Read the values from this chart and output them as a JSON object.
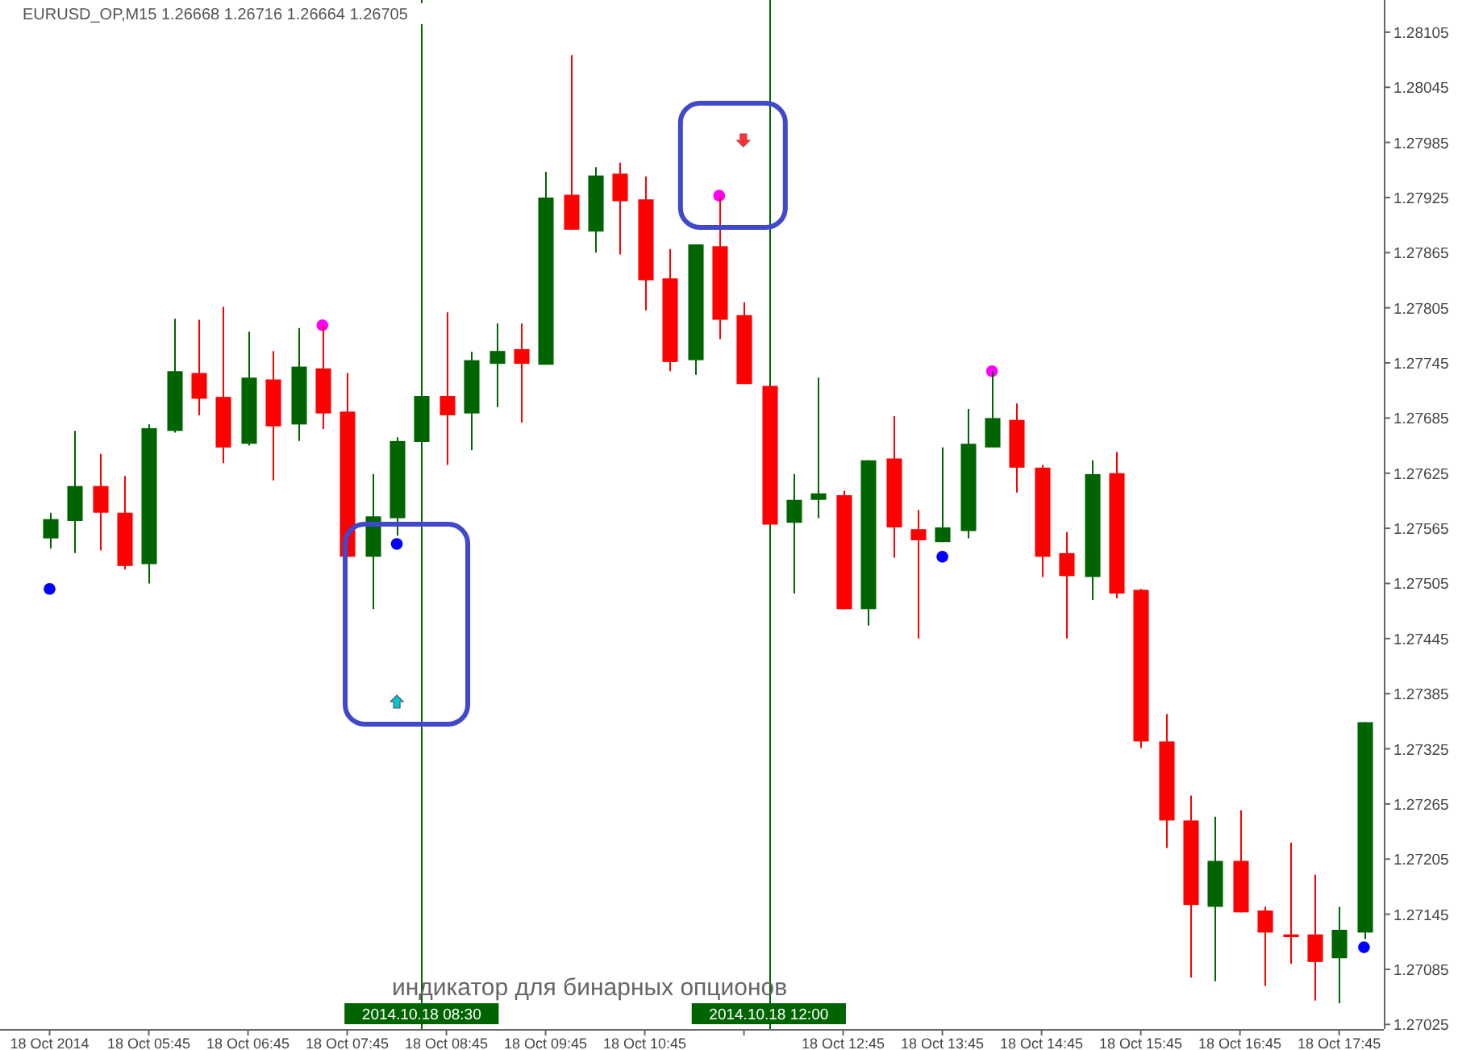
{
  "chart_data": {
    "type": "candlestick",
    "title": "EURUSD_OP,M15  1.26668 1.26716 1.26664 1.26705",
    "annotations": [
      "индикатор для бинарных опционов"
    ],
    "x": [
      "2014-10-18T04:45",
      "2014-10-18T05:00",
      "2014-10-18T05:15",
      "2014-10-18T05:30",
      "2014-10-18T05:45",
      "2014-10-18T06:00",
      "2014-10-18T06:15",
      "2014-10-18T06:30",
      "2014-10-18T06:45",
      "2014-10-18T07:00",
      "2014-10-18T07:15",
      "2014-10-18T07:30",
      "2014-10-18T07:45",
      "2014-10-18T08:00",
      "2014-10-18T08:15",
      "2014-10-18T08:30",
      "2014-10-18T08:45",
      "2014-10-18T09:00",
      "2014-10-18T09:15",
      "2014-10-18T09:30",
      "2014-10-18T09:45",
      "2014-10-18T10:00",
      "2014-10-18T10:15",
      "2014-10-18T10:30",
      "2014-10-18T10:45",
      "2014-10-18T11:00",
      "2014-10-18T11:15",
      "2014-10-18T11:30",
      "2014-10-18T11:45",
      "2014-10-18T12:00",
      "2014-10-18T12:15",
      "2014-10-18T12:30",
      "2014-10-18T12:45",
      "2014-10-18T13:00",
      "2014-10-18T13:15",
      "2014-10-18T13:30",
      "2014-10-18T13:45",
      "2014-10-18T14:00",
      "2014-10-18T14:15",
      "2014-10-18T14:30",
      "2014-10-18T14:45",
      "2014-10-18T15:00",
      "2014-10-18T15:15",
      "2014-10-18T15:30",
      "2014-10-18T15:45",
      "2014-10-18T16:00",
      "2014-10-18T16:15",
      "2014-10-18T16:30",
      "2014-10-18T16:45",
      "2014-10-18T17:00",
      "2014-10-18T17:15",
      "2014-10-18T17:30",
      "2014-10-18T17:45",
      "2014-10-18T18:00"
    ],
    "ohlc": [
      [
        1.27554,
        1.27582,
        1.27543,
        1.27575
      ],
      [
        1.27573,
        1.27671,
        1.27538,
        1.27611
      ],
      [
        1.27611,
        1.27646,
        1.27541,
        1.27582
      ],
      [
        1.27582,
        1.27622,
        1.2752,
        1.27524
      ],
      [
        1.27526,
        1.27678,
        1.27505,
        1.27674
      ],
      [
        1.27671,
        1.27793,
        1.27669,
        1.27736
      ],
      [
        1.27734,
        1.27792,
        1.27688,
        1.27706
      ],
      [
        1.27708,
        1.27806,
        1.27636,
        1.27653
      ],
      [
        1.27657,
        1.27779,
        1.27655,
        1.27729
      ],
      [
        1.27727,
        1.27758,
        1.27617,
        1.27676
      ],
      [
        1.27678,
        1.27783,
        1.2766,
        1.27741
      ],
      [
        1.27739,
        1.27786,
        1.27673,
        1.2769
      ],
      [
        1.27692,
        1.27734,
        1.27534,
        1.27534
      ],
      [
        1.27534,
        1.27624,
        1.27477,
        1.27578
      ],
      [
        1.27576,
        1.27664,
        1.27557,
        1.2766
      ],
      [
        1.27659,
        1.27709,
        1.27659,
        1.27709
      ],
      [
        1.27709,
        1.278,
        1.27634,
        1.27688
      ],
      [
        1.2769,
        1.27757,
        1.2765,
        1.27748
      ],
      [
        1.27744,
        1.27788,
        1.27697,
        1.27758
      ],
      [
        1.2776,
        1.27788,
        1.2768,
        1.27744
      ],
      [
        1.27743,
        1.27953,
        1.27743,
        1.27925
      ],
      [
        1.27928,
        1.2808,
        1.2789,
        1.2789
      ],
      [
        1.27888,
        1.27958,
        1.27865,
        1.27949
      ],
      [
        1.27951,
        1.27963,
        1.27863,
        1.27921
      ],
      [
        1.27923,
        1.27948,
        1.27802,
        1.27835
      ],
      [
        1.27837,
        1.27869,
        1.27736,
        1.27746
      ],
      [
        1.27748,
        1.27874,
        1.27732,
        1.27874
      ],
      [
        1.27872,
        1.27927,
        1.27771,
        1.27792
      ],
      [
        1.27797,
        1.27811,
        1.27722,
        1.27722
      ],
      [
        1.2772,
        1.2772,
        1.27569,
        1.27569
      ],
      [
        1.27571,
        1.27624,
        1.27494,
        1.27596
      ],
      [
        1.27596,
        1.27729,
        1.27576,
        1.27603
      ],
      [
        1.27601,
        1.27606,
        1.27477,
        1.27477
      ],
      [
        1.27477,
        1.27639,
        1.27459,
        1.27639
      ],
      [
        1.27641,
        1.27687,
        1.27533,
        1.27566
      ],
      [
        1.27564,
        1.27585,
        1.27445,
        1.27552
      ],
      [
        1.2755,
        1.27653,
        1.2755,
        1.27566
      ],
      [
        1.27562,
        1.27695,
        1.27554,
        1.27657
      ],
      [
        1.27653,
        1.27736,
        1.27653,
        1.27685
      ],
      [
        1.27683,
        1.27701,
        1.27604,
        1.27631
      ],
      [
        1.27631,
        1.27634,
        1.27512,
        1.27534
      ],
      [
        1.27538,
        1.27561,
        1.27445,
        1.27513
      ],
      [
        1.27512,
        1.27639,
        1.27487,
        1.27624
      ],
      [
        1.27625,
        1.27648,
        1.27489,
        1.27494
      ],
      [
        1.27498,
        1.27499,
        1.27326,
        1.27333
      ],
      [
        1.27333,
        1.27363,
        1.27217,
        1.27247
      ],
      [
        1.27247,
        1.27274,
        1.27076,
        1.27155
      ],
      [
        1.27153,
        1.27251,
        1.27072,
        1.27203
      ],
      [
        1.27203,
        1.27258,
        1.27147,
        1.27147
      ],
      [
        1.27149,
        1.27153,
        1.27067,
        1.27125
      ],
      [
        1.27123,
        1.27223,
        1.27091,
        1.2712
      ],
      [
        1.27123,
        1.27188,
        1.27051,
        1.27093
      ],
      [
        1.27097,
        1.27153,
        1.27048,
        1.27128
      ],
      [
        1.27125,
        1.27354,
        1.27118,
        1.27354
      ]
    ],
    "colors": [
      "#006400",
      "#006400",
      "#ff0000",
      "#ff0000",
      "#006400",
      "#006400",
      "#ff0000",
      "#ff0000",
      "#006400",
      "#ff0000",
      "#006400",
      "#ff0000",
      "#ff0000",
      "#006400",
      "#006400",
      "#006400",
      "#ff0000",
      "#006400",
      "#006400",
      "#ff0000",
      "#006400",
      "#ff0000",
      "#006400",
      "#ff0000",
      "#ff0000",
      "#ff0000",
      "#006400",
      "#ff0000",
      "#ff0000",
      "#ff0000",
      "#006400",
      "#006400",
      "#ff0000",
      "#006400",
      "#ff0000",
      "#ff0000",
      "#006400",
      "#006400",
      "#006400",
      "#ff0000",
      "#ff0000",
      "#ff0000",
      "#006400",
      "#ff0000",
      "#ff0000",
      "#ff0000",
      "#ff0000",
      "#006400",
      "#ff0000",
      "#ff0000",
      "#ff0000",
      "#ff0000",
      "#006400",
      "#006400"
    ],
    "series": [
      {
        "type": "scatter",
        "color": "#ff00ff",
        "x": [
          "2014-10-18T07:30",
          "2014-10-18T11:30",
          "2014-10-18T14:15"
        ],
        "values": [
          1.27786,
          1.27927,
          1.27736
        ]
      },
      {
        "type": "scatter",
        "color": "#0000ff",
        "x": [
          "2014-10-18T04:45",
          "2014-10-18T08:15",
          "2014-10-18T13:45",
          "2014-10-18T18:00"
        ],
        "values": [
          1.27499,
          1.27548,
          1.27534,
          1.27109
        ]
      }
    ],
    "marker": "circle",
    "xlim": [
      "2014-10-18T04:15",
      "2014-10-18T18:12"
    ],
    "xticks": [
      {
        "value": "2014-10-18T04:45",
        "label": "18 Oct 2014"
      },
      {
        "value": "2014-10-18T05:45",
        "label": "18 Oct 05:45"
      },
      {
        "value": "2014-10-18T06:45",
        "label": "18 Oct 06:45"
      },
      {
        "value": "2014-10-18T07:45",
        "label": "18 Oct 07:45"
      },
      {
        "value": "2014-10-18T08:45",
        "label": "18 Oct 08:45"
      },
      {
        "value": "2014-10-18T09:45",
        "label": "18 Oct 09:45"
      },
      {
        "value": "2014-10-18T10:45",
        "label": "18 Oct 10:45"
      },
      {
        "value": "2014-10-18T11:45",
        "label": null
      },
      {
        "value": "2014-10-18T12:45",
        "label": "18 Oct 12:45"
      },
      {
        "value": "2014-10-18T13:45",
        "label": "18 Oct 13:45"
      },
      {
        "value": "2014-10-18T14:45",
        "label": "18 Oct 14:45"
      },
      {
        "value": "2014-10-18T15:45",
        "label": "18 Oct 15:45"
      },
      {
        "value": "2014-10-18T16:45",
        "label": "18 Oct 16:45"
      },
      {
        "value": "2014-10-18T17:45",
        "label": "18 Oct 17:45"
      }
    ],
    "ylim": [
      1.2702,
      1.2814
    ],
    "yticks": [
      1.28105,
      1.28045,
      1.27985,
      1.27925,
      1.27865,
      1.27805,
      1.27745,
      1.27685,
      1.27625,
      1.27565,
      1.27505,
      1.27445,
      1.27385,
      1.27325,
      1.27265,
      1.27205,
      1.27145,
      1.27085,
      1.27025
    ],
    "ref_lines": [
      {
        "axis": "x",
        "value": "2014-10-18T08:30",
        "label": "2014.10.18 08:30",
        "color": "#006400"
      },
      {
        "axis": "x",
        "value": "2014-10-18T12:00",
        "label": "2014.10.18 12:00",
        "color": "#006400"
      }
    ]
  }
}
